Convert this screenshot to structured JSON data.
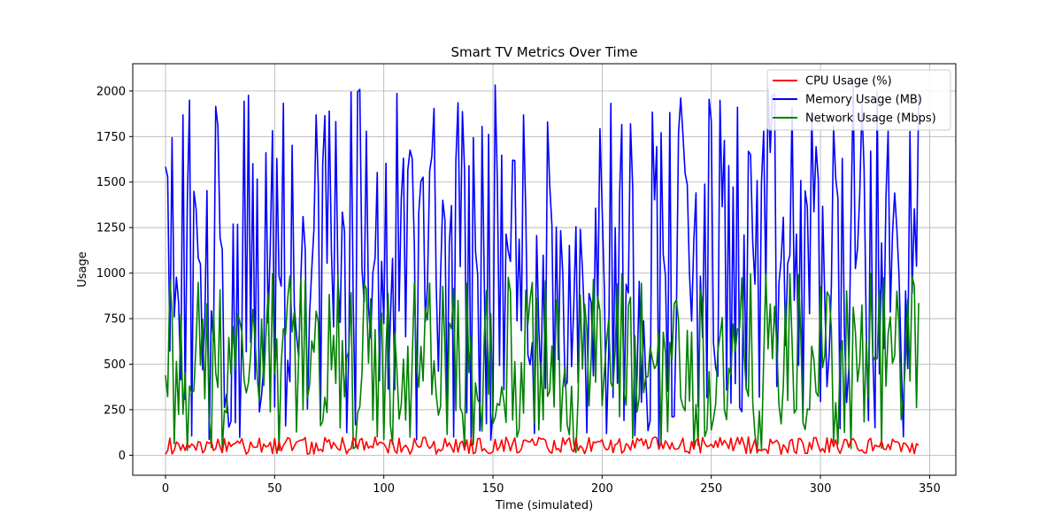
{
  "chart_data": {
    "type": "line",
    "title": "Smart TV Metrics Over Time",
    "xlabel": "Time (simulated)",
    "ylabel": "Usage",
    "xlim": [
      -15,
      362
    ],
    "ylim": [
      -110,
      2150
    ],
    "xticks": [
      0,
      50,
      100,
      150,
      200,
      250,
      300,
      350
    ],
    "yticks": [
      0,
      250,
      500,
      750,
      1000,
      1250,
      1500,
      1750,
      2000
    ],
    "grid": true,
    "legend": "top-right",
    "series": [
      {
        "name": "CPU Usage (%)",
        "color": "#ff0000",
        "values": []
      },
      {
        "name": "Memory Usage (MB)",
        "color": "#0000ff",
        "values": []
      },
      {
        "name": "Network Usage (Mbps)",
        "color": "#008000",
        "values": []
      }
    ],
    "x_start": 0,
    "x_end": 345
  }
}
